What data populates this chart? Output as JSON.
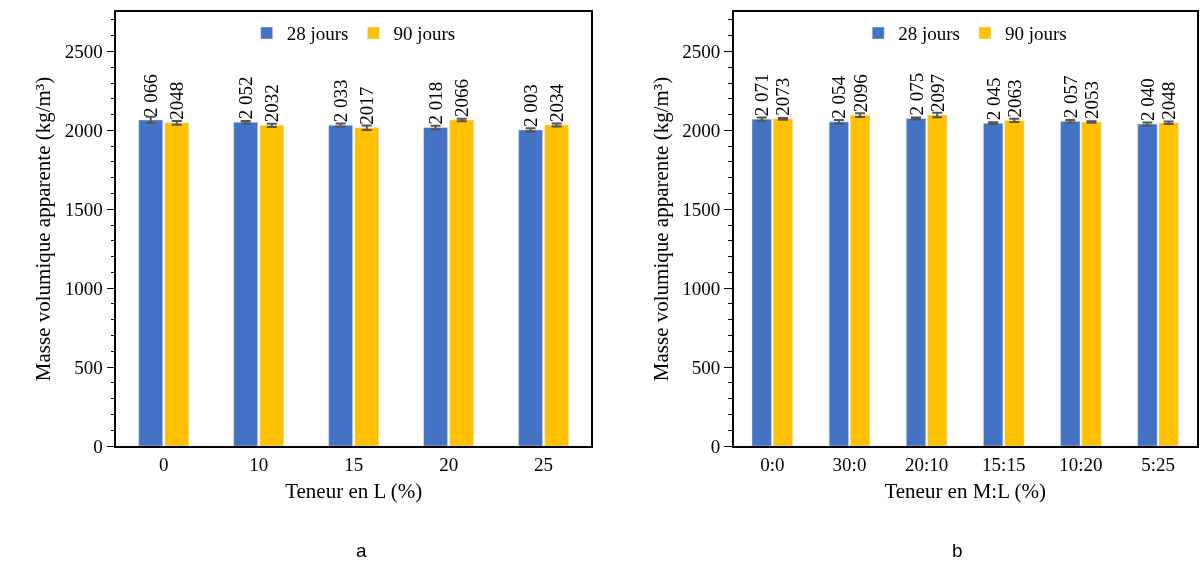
{
  "chart_data": [
    {
      "type": "bar",
      "categories": [
        "0",
        "10",
        "15",
        "20",
        "25"
      ],
      "xlabel": "Teneur en L (%)",
      "ylabel": "Masse volumique apparente (kg/m³)",
      "ylim": [
        0,
        2750
      ],
      "yticks": [
        0,
        500,
        1000,
        1500,
        2000,
        2500
      ],
      "legend": "top",
      "annotations": [
        "a"
      ],
      "series": [
        {
          "name": "28 jours",
          "color": "#4472c4",
          "values": [
            2066,
            2052,
            2033,
            2018,
            2003
          ],
          "errors": [
            20,
            8,
            10,
            12,
            10
          ],
          "value_labels": [
            "2 066",
            "2 052",
            "2 033",
            "2 018",
            "2 003"
          ]
        },
        {
          "name": "90 jours",
          "color": "#ffc000",
          "values": [
            2048,
            2032,
            2017,
            2066,
            2034
          ],
          "errors": [
            12,
            10,
            14,
            8,
            10
          ],
          "value_labels": [
            "2048",
            "2032",
            "2017",
            "2066",
            "2034"
          ]
        }
      ]
    },
    {
      "type": "bar",
      "categories": [
        "0:0",
        "30:0",
        "20:10",
        "15:15",
        "10:20",
        "5:25"
      ],
      "xlabel": "Teneur en M:L (%)",
      "ylabel": "Masse volumique apparente (kg/m³)",
      "ylim": [
        0,
        2750
      ],
      "yticks": [
        0,
        500,
        1000,
        1500,
        2000,
        2500
      ],
      "legend": "top",
      "annotations": [
        "b"
      ],
      "series": [
        {
          "name": "28 jours",
          "color": "#4472c4",
          "values": [
            2071,
            2054,
            2075,
            2045,
            2057,
            2040
          ],
          "errors": [
            10,
            12,
            6,
            6,
            8,
            10
          ],
          "value_labels": [
            "2 071",
            "2 054",
            "2 075",
            "2 045",
            "2 057",
            "2 040"
          ]
        },
        {
          "name": "90 jours",
          "color": "#ffc000",
          "values": [
            2073,
            2096,
            2097,
            2063,
            2053,
            2048
          ],
          "errors": [
            6,
            12,
            14,
            10,
            4,
            8
          ],
          "value_labels": [
            "2073",
            "2096",
            "2097",
            "2063",
            "2053",
            "2048"
          ]
        }
      ]
    }
  ]
}
